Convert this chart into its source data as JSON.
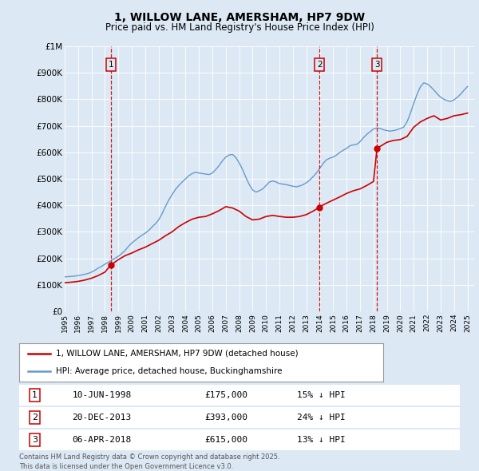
{
  "title": "1, WILLOW LANE, AMERSHAM, HP7 9DW",
  "subtitle": "Price paid vs. HM Land Registry's House Price Index (HPI)",
  "background_color": "#dce9f5",
  "plot_bg_color": "#dce9f5",
  "ylim": [
    0,
    1000000
  ],
  "xlim_start": 1995.0,
  "xlim_end": 2025.5,
  "yticks": [
    0,
    100000,
    200000,
    300000,
    400000,
    500000,
    600000,
    700000,
    800000,
    900000,
    1000000
  ],
  "ytick_labels": [
    "£0",
    "£100K",
    "£200K",
    "£300K",
    "£400K",
    "£500K",
    "£600K",
    "£700K",
    "£800K",
    "£900K",
    "£1M"
  ],
  "purchase_dates_dec": [
    1998.44,
    2013.97,
    2018.26
  ],
  "purchase_prices": [
    175000,
    393000,
    615000
  ],
  "purchase_labels": [
    "1",
    "2",
    "3"
  ],
  "purchase_info": [
    {
      "label": "1",
      "date": "10-JUN-1998",
      "price": "£175,000",
      "note": "15% ↓ HPI"
    },
    {
      "label": "2",
      "date": "20-DEC-2013",
      "price": "£393,000",
      "note": "24% ↓ HPI"
    },
    {
      "label": "3",
      "date": "06-APR-2018",
      "price": "£615,000",
      "note": "13% ↓ HPI"
    }
  ],
  "legend_entries": [
    {
      "label": "1, WILLOW LANE, AMERSHAM, HP7 9DW (detached house)",
      "color": "#cc0000"
    },
    {
      "label": "HPI: Average price, detached house, Buckinghamshire",
      "color": "#6699cc"
    }
  ],
  "footer_line1": "Contains HM Land Registry data © Crown copyright and database right 2025.",
  "footer_line2": "This data is licensed under the Open Government Licence v3.0.",
  "red_line_color": "#cc0000",
  "blue_line_color": "#6699cc",
  "dashed_line_color": "#cc0000",
  "box_color": "#cc0000",
  "hpi_data_x": [
    1995.0,
    1995.25,
    1995.5,
    1995.75,
    1996.0,
    1996.25,
    1996.5,
    1996.75,
    1997.0,
    1997.25,
    1997.5,
    1997.75,
    1998.0,
    1998.25,
    1998.5,
    1998.75,
    1999.0,
    1999.25,
    1999.5,
    1999.75,
    2000.0,
    2000.25,
    2000.5,
    2000.75,
    2001.0,
    2001.25,
    2001.5,
    2001.75,
    2002.0,
    2002.25,
    2002.5,
    2002.75,
    2003.0,
    2003.25,
    2003.5,
    2003.75,
    2004.0,
    2004.25,
    2004.5,
    2004.75,
    2005.0,
    2005.25,
    2005.5,
    2005.75,
    2006.0,
    2006.25,
    2006.5,
    2006.75,
    2007.0,
    2007.25,
    2007.5,
    2007.75,
    2008.0,
    2008.25,
    2008.5,
    2008.75,
    2009.0,
    2009.25,
    2009.5,
    2009.75,
    2010.0,
    2010.25,
    2010.5,
    2010.75,
    2011.0,
    2011.25,
    2011.5,
    2011.75,
    2012.0,
    2012.25,
    2012.5,
    2012.75,
    2013.0,
    2013.25,
    2013.5,
    2013.75,
    2014.0,
    2014.25,
    2014.5,
    2014.75,
    2015.0,
    2015.25,
    2015.5,
    2015.75,
    2016.0,
    2016.25,
    2016.5,
    2016.75,
    2017.0,
    2017.25,
    2017.5,
    2017.75,
    2018.0,
    2018.25,
    2018.5,
    2018.75,
    2019.0,
    2019.25,
    2019.5,
    2019.75,
    2020.0,
    2020.25,
    2020.5,
    2020.75,
    2021.0,
    2021.25,
    2021.5,
    2021.75,
    2022.0,
    2022.25,
    2022.5,
    2022.75,
    2023.0,
    2023.25,
    2023.5,
    2023.75,
    2024.0,
    2024.25,
    2024.5,
    2024.75,
    2025.0
  ],
  "hpi_data_y": [
    130000,
    131000,
    132000,
    133000,
    135000,
    137000,
    140000,
    143000,
    148000,
    155000,
    163000,
    170000,
    178000,
    185000,
    193000,
    200000,
    208000,
    218000,
    230000,
    245000,
    258000,
    268000,
    278000,
    287000,
    295000,
    305000,
    318000,
    330000,
    345000,
    368000,
    395000,
    420000,
    440000,
    460000,
    475000,
    488000,
    500000,
    512000,
    520000,
    525000,
    522000,
    520000,
    518000,
    516000,
    522000,
    535000,
    550000,
    568000,
    582000,
    590000,
    592000,
    580000,
    560000,
    535000,
    505000,
    478000,
    458000,
    450000,
    455000,
    462000,
    475000,
    488000,
    492000,
    488000,
    482000,
    480000,
    478000,
    475000,
    472000,
    470000,
    473000,
    478000,
    485000,
    495000,
    508000,
    522000,
    540000,
    558000,
    572000,
    578000,
    582000,
    590000,
    600000,
    608000,
    615000,
    625000,
    628000,
    630000,
    640000,
    655000,
    668000,
    678000,
    688000,
    692000,
    690000,
    685000,
    682000,
    680000,
    682000,
    685000,
    690000,
    695000,
    715000,
    748000,
    785000,
    820000,
    848000,
    862000,
    858000,
    848000,
    835000,
    820000,
    808000,
    800000,
    795000,
    792000,
    798000,
    808000,
    820000,
    835000,
    848000
  ],
  "red_line_x": [
    1995.0,
    1995.5,
    1996.0,
    1996.5,
    1997.0,
    1997.5,
    1998.0,
    1998.44,
    1999.0,
    1999.5,
    2000.0,
    2000.5,
    2001.0,
    2001.5,
    2002.0,
    2002.5,
    2003.0,
    2003.5,
    2004.0,
    2004.5,
    2005.0,
    2005.5,
    2006.0,
    2006.5,
    2007.0,
    2007.5,
    2008.0,
    2008.5,
    2009.0,
    2009.5,
    2010.0,
    2010.5,
    2011.0,
    2011.5,
    2012.0,
    2012.5,
    2013.0,
    2013.5,
    2013.97,
    2014.0,
    2014.5,
    2015.0,
    2015.5,
    2016.0,
    2016.5,
    2017.0,
    2017.5,
    2018.0,
    2018.26,
    2019.0,
    2019.5,
    2020.0,
    2020.5,
    2021.0,
    2021.5,
    2022.0,
    2022.5,
    2023.0,
    2023.5,
    2024.0,
    2024.5,
    2025.0
  ],
  "red_line_y": [
    108000,
    110000,
    113000,
    118000,
    125000,
    135000,
    148000,
    175000,
    195000,
    210000,
    220000,
    232000,
    242000,
    255000,
    268000,
    285000,
    300000,
    320000,
    335000,
    348000,
    355000,
    358000,
    368000,
    380000,
    395000,
    390000,
    378000,
    358000,
    345000,
    348000,
    358000,
    362000,
    358000,
    355000,
    355000,
    358000,
    365000,
    378000,
    393000,
    395000,
    408000,
    420000,
    432000,
    445000,
    455000,
    462000,
    475000,
    490000,
    615000,
    638000,
    645000,
    648000,
    660000,
    695000,
    715000,
    728000,
    738000,
    722000,
    728000,
    738000,
    742000,
    748000
  ]
}
